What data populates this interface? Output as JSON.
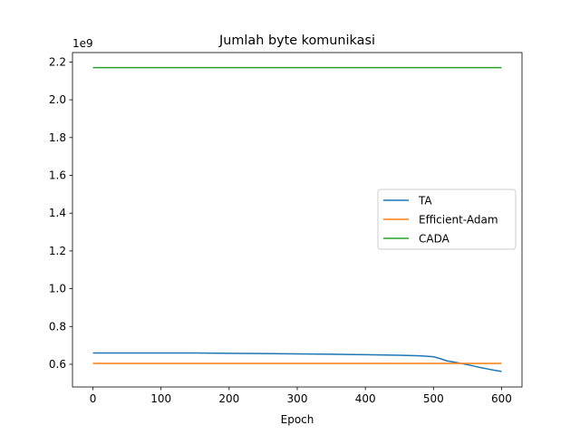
{
  "chart_data": {
    "type": "line",
    "title": "Jumlah byte komunikasi",
    "xlabel": "Epoch",
    "ylabel": "",
    "y_offset_label": "1e9",
    "xlim": [
      -30,
      630
    ],
    "ylim": [
      0.48,
      2.25
    ],
    "x_ticks": [
      0,
      100,
      200,
      300,
      400,
      500,
      600
    ],
    "y_ticks": [
      0.6,
      0.8,
      1.0,
      1.2,
      1.4,
      1.6,
      1.8,
      2.0,
      2.2
    ],
    "y_tick_labels": [
      "0.6",
      "0.8",
      "1.0",
      "1.2",
      "1.4",
      "1.6",
      "1.8",
      "2.0",
      "2.2"
    ],
    "legend_position": "center-right",
    "grid": false,
    "series": [
      {
        "name": "TA",
        "color": "#1f77b4",
        "x": [
          0,
          50,
          100,
          150,
          200,
          250,
          300,
          350,
          400,
          450,
          480,
          500,
          510,
          520,
          530,
          540,
          550,
          560,
          570,
          580,
          590,
          600
        ],
        "y": [
          0.66,
          0.66,
          0.66,
          0.66,
          0.658,
          0.657,
          0.655,
          0.653,
          0.651,
          0.648,
          0.645,
          0.64,
          0.63,
          0.618,
          0.612,
          0.605,
          0.598,
          0.59,
          0.582,
          0.575,
          0.568,
          0.562
        ]
      },
      {
        "name": "Efficient-Adam",
        "color": "#ff7f0e",
        "x": [
          0,
          600
        ],
        "y": [
          0.605,
          0.605
        ]
      },
      {
        "name": "CADA",
        "color": "#2ca02c",
        "x": [
          0,
          600
        ],
        "y": [
          2.17,
          2.17
        ]
      }
    ]
  }
}
